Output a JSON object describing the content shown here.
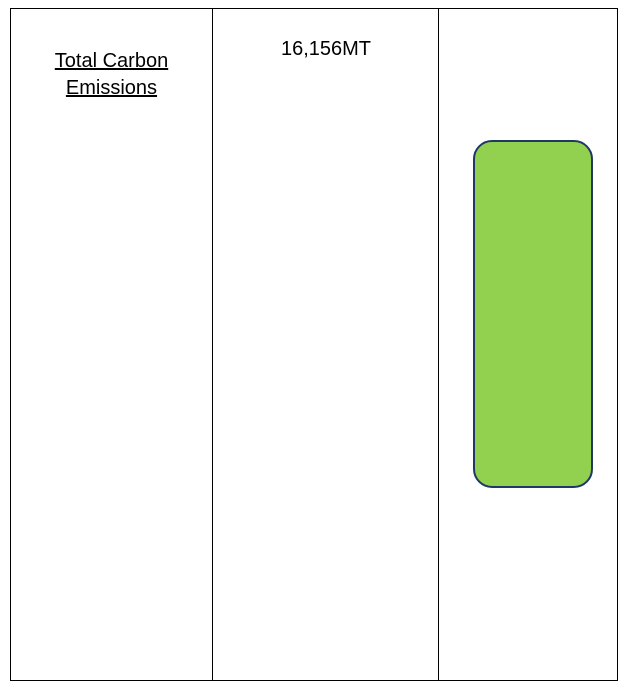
{
  "table": {
    "rows": [
      [
        "Total Carbon Emissions",
        "16,156MT"
      ]
    ]
  }
}
